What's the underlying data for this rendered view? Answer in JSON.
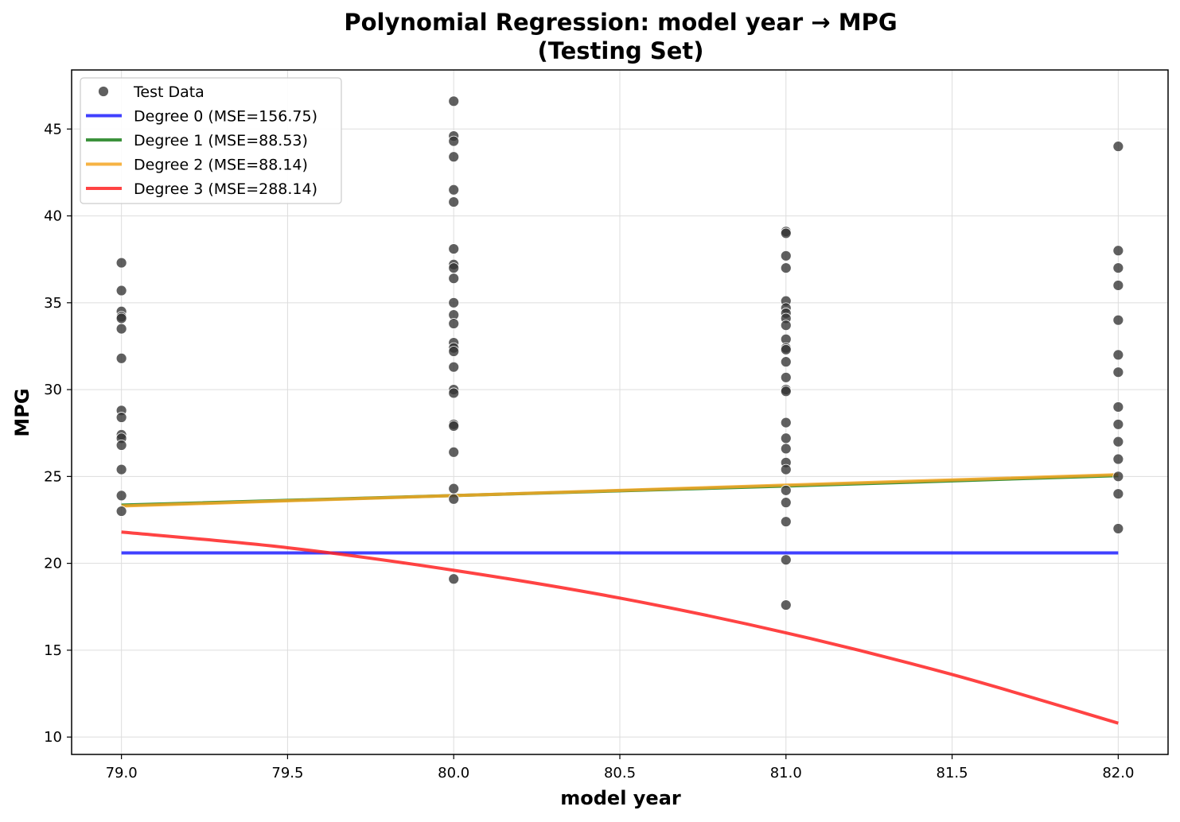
{
  "chart_data": {
    "type": "scatter",
    "title_line1": "Polynomial Regression: model year → MPG",
    "title_line2": "(Testing Set)",
    "xlabel": "model year",
    "ylabel": "MPG",
    "xlim": [
      78.85,
      82.15
    ],
    "ylim": [
      9.0,
      48.4
    ],
    "xticks": [
      "79.0",
      "79.5",
      "80.0",
      "80.5",
      "81.0",
      "81.5",
      "82.0"
    ],
    "yticks": [
      "10",
      "15",
      "20",
      "25",
      "30",
      "35",
      "40",
      "45"
    ],
    "grid": true,
    "legend_position": "upper left",
    "scatter": {
      "name": "Test Data",
      "color": "#333333",
      "points": [
        [
          79,
          37.3
        ],
        [
          79,
          35.7
        ],
        [
          79,
          34.5
        ],
        [
          79,
          34.2
        ],
        [
          79,
          34.1
        ],
        [
          79,
          33.5
        ],
        [
          79,
          31.8
        ],
        [
          79,
          28.8
        ],
        [
          79,
          28.4
        ],
        [
          79,
          27.4
        ],
        [
          79,
          27.2
        ],
        [
          79,
          26.8
        ],
        [
          79,
          25.4
        ],
        [
          79,
          23.9
        ],
        [
          79,
          23.0
        ],
        [
          80,
          46.6
        ],
        [
          80,
          44.6
        ],
        [
          80,
          44.3
        ],
        [
          80,
          43.4
        ],
        [
          80,
          41.5
        ],
        [
          80,
          40.8
        ],
        [
          80,
          38.1
        ],
        [
          80,
          37.2
        ],
        [
          80,
          37.0
        ],
        [
          80,
          36.4
        ],
        [
          80,
          35.0
        ],
        [
          80,
          34.3
        ],
        [
          80,
          33.8
        ],
        [
          80,
          32.7
        ],
        [
          80,
          32.4
        ],
        [
          80,
          32.2
        ],
        [
          80,
          31.3
        ],
        [
          80,
          30.0
        ],
        [
          80,
          29.8
        ],
        [
          80,
          28.0
        ],
        [
          80,
          27.9
        ],
        [
          80,
          26.4
        ],
        [
          80,
          24.3
        ],
        [
          80,
          23.7
        ],
        [
          80,
          19.1
        ],
        [
          81,
          39.1
        ],
        [
          81,
          39.0
        ],
        [
          81,
          37.7
        ],
        [
          81,
          37.0
        ],
        [
          81,
          35.1
        ],
        [
          81,
          34.7
        ],
        [
          81,
          34.4
        ],
        [
          81,
          34.1
        ],
        [
          81,
          33.7
        ],
        [
          81,
          32.9
        ],
        [
          81,
          32.4
        ],
        [
          81,
          32.3
        ],
        [
          81,
          31.6
        ],
        [
          81,
          30.7
        ],
        [
          81,
          30.0
        ],
        [
          81,
          29.9
        ],
        [
          81,
          28.1
        ],
        [
          81,
          27.2
        ],
        [
          81,
          26.6
        ],
        [
          81,
          25.8
        ],
        [
          81,
          25.4
        ],
        [
          81,
          24.2
        ],
        [
          81,
          23.5
        ],
        [
          81,
          22.4
        ],
        [
          81,
          20.2
        ],
        [
          81,
          17.6
        ],
        [
          82,
          44.0
        ],
        [
          82,
          38.0
        ],
        [
          82,
          37.0
        ],
        [
          82,
          36.0
        ],
        [
          82,
          34.0
        ],
        [
          82,
          32.0
        ],
        [
          82,
          31.0
        ],
        [
          82,
          29.0
        ],
        [
          82,
          28.0
        ],
        [
          82,
          27.0
        ],
        [
          82,
          26.0
        ],
        [
          82,
          25.0
        ],
        [
          82,
          24.0
        ],
        [
          82,
          22.0
        ]
      ]
    },
    "series": [
      {
        "name": "Degree 0 (MSE=156.75)",
        "color": "#1f1fff",
        "x": [
          79,
          80,
          81,
          82
        ],
        "y": [
          20.6,
          20.6,
          20.6,
          20.6
        ]
      },
      {
        "name": "Degree 1 (MSE=88.53)",
        "color": "#1a7f1a",
        "x": [
          79,
          80,
          81,
          82
        ],
        "y": [
          23.35,
          23.9,
          24.45,
          25.05
        ]
      },
      {
        "name": "Degree 2 (MSE=88.14)",
        "color": "#f5a623",
        "x": [
          79,
          80,
          81,
          82
        ],
        "y": [
          23.3,
          23.9,
          24.5,
          25.1
        ]
      },
      {
        "name": "Degree 3 (MSE=288.14)",
        "color": "#ff2222",
        "x": [
          79,
          79.5,
          80,
          80.5,
          81,
          81.5,
          82
        ],
        "y": [
          21.8,
          20.9,
          19.6,
          18.0,
          16.0,
          13.6,
          10.8
        ]
      }
    ]
  }
}
